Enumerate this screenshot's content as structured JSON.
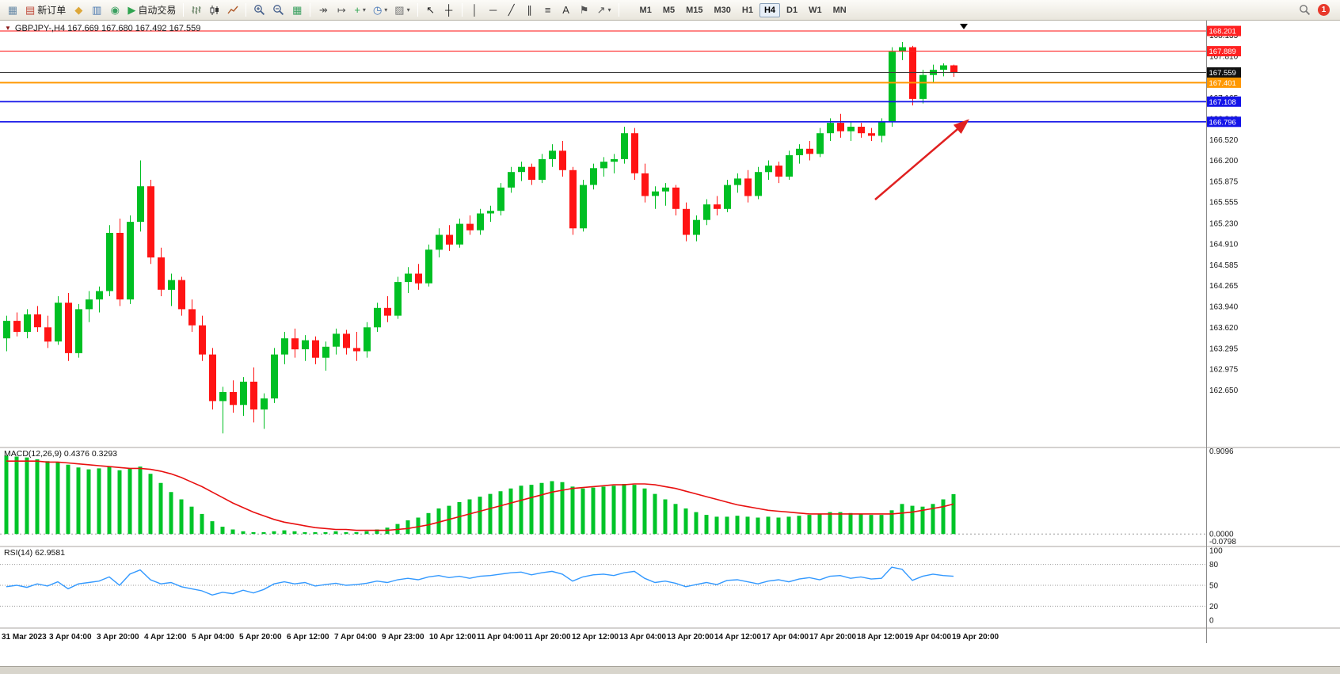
{
  "toolbar": {
    "badge": "1",
    "items": [
      {
        "name": "new-chart-button",
        "glyph": "▦",
        "color": "#6a8ba8"
      },
      {
        "name": "new-order-button",
        "glyph": "▤",
        "color": "#c04a3a",
        "label": "新订单"
      },
      {
        "name": "market-watch-button",
        "glyph": "◆",
        "color": "#dda739"
      },
      {
        "name": "data-window-button",
        "glyph": "▥",
        "color": "#4a78b0"
      },
      {
        "name": "navigator-button",
        "glyph": "◉",
        "color": "#3ba060"
      },
      {
        "name": "autotrading-button",
        "glyph": "▶",
        "color": "#2fa44f",
        "label": "自动交易"
      },
      {
        "sep": true
      },
      {
        "name": "bars-chart-button",
        "svg": "bars"
      },
      {
        "name": "candles-chart-button",
        "svg": "candles"
      },
      {
        "name": "line-chart-button",
        "svg": "line"
      },
      {
        "sep": true
      },
      {
        "name": "zoom-in-button",
        "svg": "zoomin"
      },
      {
        "name": "zoom-out-button",
        "svg": "zoomout"
      },
      {
        "name": "tile-windows-button",
        "glyph": "▦",
        "color": "#3ba060"
      },
      {
        "sep": true
      },
      {
        "name": "auto-scroll-button",
        "glyph": "↠",
        "color": "#555555"
      },
      {
        "name": "chart-shift-button",
        "glyph": "↦",
        "color": "#555555"
      },
      {
        "name": "indicators-button",
        "glyph": "+",
        "color": "#2fa44f",
        "caret": true
      },
      {
        "name": "periods-button",
        "glyph": "◷",
        "color": "#3a6eb5",
        "caret": true
      },
      {
        "name": "templates-button",
        "glyph": "▨",
        "color": "#777777",
        "caret": true
      },
      {
        "sep": true
      },
      {
        "name": "cursor-button",
        "glyph": "↖",
        "color": "#222222"
      },
      {
        "name": "crosshair-button",
        "glyph": "┼",
        "color": "#222222"
      },
      {
        "sep": true
      },
      {
        "name": "vertical-line-button",
        "glyph": "│",
        "color": "#333333"
      },
      {
        "name": "horizontal-line-button",
        "glyph": "─",
        "color": "#333333"
      },
      {
        "name": "trendline-button",
        "glyph": "╱",
        "color": "#333333"
      },
      {
        "name": "channel-button",
        "glyph": "∥",
        "color": "#333333"
      },
      {
        "name": "fibonacci-button",
        "glyph": "≡",
        "color": "#333333"
      },
      {
        "name": "text-button",
        "glyph": "A",
        "color": "#333333"
      },
      {
        "name": "text-label-button",
        "glyph": "⚑",
        "color": "#555555"
      },
      {
        "name": "arrows-button",
        "glyph": "↗",
        "color": "#555555",
        "caret": true
      },
      {
        "sep": true
      }
    ],
    "timeframes": [
      {
        "label": "M1"
      },
      {
        "label": "M5"
      },
      {
        "label": "M15"
      },
      {
        "label": "M30"
      },
      {
        "label": "H1"
      },
      {
        "label": "H4",
        "active": true
      },
      {
        "label": "D1"
      },
      {
        "label": "W1"
      },
      {
        "label": "MN"
      }
    ]
  },
  "icons": {
    "symbol_marker": "▼"
  },
  "chart": {
    "symbol": "GBPJPY-",
    "period": "H4",
    "title": "GBPJPY-,H4  167.669 167.680 167.492 167.559"
  },
  "colors": {
    "up": "#00bf23",
    "down": "#ff1414",
    "macd_bar": "#00c428",
    "macd_signal": "#e81010",
    "rsi_line": "#3399ff",
    "arrow": "#e02020",
    "level_red": "#ff2222",
    "level_orange": "#ff9800",
    "level_blue": "#1414e8",
    "current_price_line": "#3a3a3a"
  },
  "price_axis": {
    "ticks": [
      "168.135",
      "167.810",
      "167.485",
      "167.165",
      "166.840",
      "166.520",
      "166.200",
      "165.875",
      "165.555",
      "165.230",
      "164.910",
      "164.585",
      "164.265",
      "163.940",
      "163.620",
      "163.295",
      "162.975",
      "162.650"
    ]
  },
  "price_lines": [
    {
      "price": 168.201,
      "label": "168.201",
      "color": "#ff2222",
      "width": 1.2
    },
    {
      "price": 167.889,
      "label": "167.889",
      "color": "#ff2222",
      "width": 1.2
    },
    {
      "price": 167.559,
      "label": "167.559",
      "color": "#3a3a3a",
      "width": 1,
      "badge": "#111111",
      "current": true
    },
    {
      "price": 167.401,
      "label": "167.401",
      "color": "#ff9800",
      "width": 2
    },
    {
      "price": 167.108,
      "label": "167.108",
      "color": "#1414e8",
      "width": 1.7
    },
    {
      "price": 166.796,
      "label": "166.796",
      "color": "#1414e8",
      "width": 1.7
    }
  ],
  "time_axis": [
    "31 Mar 2023",
    "3 Apr 04:00",
    "3 Apr 20:00",
    "4 Apr 12:00",
    "5 Apr 04:00",
    "5 Apr 20:00",
    "6 Apr 12:00",
    "7 Apr 04:00",
    "9 Apr 23:00",
    "10 Apr 12:00",
    "11 Apr 04:00",
    "11 Apr 20:00",
    "12 Apr 12:00",
    "13 Apr 04:00",
    "13 Apr 20:00",
    "14 Apr 12:00",
    "17 Apr 04:00",
    "17 Apr 20:00",
    "18 Apr 12:00",
    "19 Apr 04:00",
    "19 Apr 20:00"
  ],
  "macd": {
    "label": "MACD(12,26,9) 0.4376 0.3293",
    "axis": [
      {
        "v": 0.9096,
        "t": "0.9096"
      },
      {
        "v": 0.0,
        "t": "0.0000"
      },
      {
        "v": -0.0798,
        "t": "-0.0798"
      }
    ],
    "histogram": [
      0.86,
      0.85,
      0.84,
      0.82,
      0.8,
      0.79,
      0.76,
      0.73,
      0.71,
      0.72,
      0.74,
      0.7,
      0.72,
      0.74,
      0.66,
      0.56,
      0.46,
      0.38,
      0.3,
      0.22,
      0.14,
      0.08,
      0.05,
      0.03,
      0.02,
      0.02,
      0.03,
      0.04,
      0.03,
      0.02,
      0.02,
      0.02,
      0.03,
      0.02,
      0.02,
      0.03,
      0.05,
      0.07,
      0.11,
      0.15,
      0.18,
      0.23,
      0.28,
      0.31,
      0.35,
      0.38,
      0.41,
      0.44,
      0.47,
      0.5,
      0.53,
      0.54,
      0.56,
      0.58,
      0.57,
      0.52,
      0.5,
      0.51,
      0.52,
      0.53,
      0.55,
      0.54,
      0.5,
      0.44,
      0.38,
      0.33,
      0.28,
      0.24,
      0.21,
      0.19,
      0.19,
      0.2,
      0.19,
      0.18,
      0.19,
      0.18,
      0.19,
      0.2,
      0.21,
      0.22,
      0.24,
      0.24,
      0.23,
      0.22,
      0.21,
      0.21,
      0.26,
      0.33,
      0.31,
      0.3,
      0.33,
      0.38,
      0.4376
    ],
    "signal": [
      0.8,
      0.8,
      0.8,
      0.8,
      0.79,
      0.79,
      0.78,
      0.77,
      0.76,
      0.75,
      0.74,
      0.73,
      0.72,
      0.72,
      0.71,
      0.69,
      0.66,
      0.62,
      0.57,
      0.52,
      0.46,
      0.4,
      0.34,
      0.29,
      0.24,
      0.2,
      0.16,
      0.13,
      0.11,
      0.09,
      0.07,
      0.06,
      0.05,
      0.05,
      0.04,
      0.04,
      0.04,
      0.04,
      0.05,
      0.06,
      0.08,
      0.1,
      0.13,
      0.16,
      0.19,
      0.22,
      0.25,
      0.28,
      0.31,
      0.34,
      0.37,
      0.4,
      0.43,
      0.46,
      0.48,
      0.5,
      0.51,
      0.52,
      0.53,
      0.54,
      0.54,
      0.55,
      0.55,
      0.54,
      0.52,
      0.5,
      0.47,
      0.44,
      0.41,
      0.38,
      0.35,
      0.32,
      0.3,
      0.28,
      0.26,
      0.25,
      0.24,
      0.23,
      0.22,
      0.22,
      0.22,
      0.22,
      0.22,
      0.22,
      0.22,
      0.22,
      0.22,
      0.23,
      0.24,
      0.26,
      0.28,
      0.3,
      0.3293
    ]
  },
  "rsi": {
    "label": "RSI(14) 62.9581",
    "axis": [
      "100",
      "80",
      "50",
      "20",
      "0"
    ],
    "levels": [
      80,
      50,
      20
    ],
    "values": [
      48,
      50,
      47,
      52,
      49,
      55,
      45,
      52,
      54,
      56,
      62,
      50,
      66,
      72,
      58,
      52,
      54,
      48,
      45,
      42,
      36,
      40,
      38,
      43,
      39,
      44,
      52,
      55,
      52,
      54,
      49,
      51,
      53,
      50,
      51,
      53,
      56,
      54,
      58,
      60,
      58,
      62,
      64,
      61,
      63,
      60,
      63,
      64,
      66,
      68,
      69,
      65,
      68,
      70,
      66,
      56,
      62,
      65,
      66,
      64,
      68,
      70,
      60,
      54,
      56,
      53,
      48,
      51,
      54,
      51,
      57,
      58,
      55,
      52,
      56,
      58,
      55,
      59,
      61,
      58,
      63,
      64,
      60,
      62,
      59,
      60,
      76,
      73,
      57,
      63,
      66,
      64,
      62.96
    ]
  },
  "chart_data": {
    "type": "candlestick",
    "symbol": "GBPJPY-",
    "timeframe": "H4",
    "current_bar": {
      "open": 167.669,
      "high": 167.68,
      "low": 167.492,
      "close": 167.559
    },
    "ylim": [
      161.787,
      168.312
    ],
    "candles": [
      [
        163.45,
        163.8,
        163.25,
        163.72
      ],
      [
        163.72,
        163.85,
        163.48,
        163.55
      ],
      [
        163.55,
        163.9,
        163.45,
        163.82
      ],
      [
        163.82,
        163.95,
        163.55,
        163.62
      ],
      [
        163.62,
        163.8,
        163.3,
        163.4
      ],
      [
        163.4,
        164.1,
        163.35,
        164.0
      ],
      [
        164.0,
        164.15,
        163.1,
        163.22
      ],
      [
        163.22,
        163.98,
        163.15,
        163.9
      ],
      [
        163.9,
        164.18,
        163.7,
        164.05
      ],
      [
        164.05,
        164.25,
        163.85,
        164.18
      ],
      [
        164.18,
        165.2,
        164.1,
        165.08
      ],
      [
        165.08,
        165.3,
        163.95,
        164.05
      ],
      [
        164.05,
        165.35,
        163.98,
        165.25
      ],
      [
        165.25,
        166.2,
        165.1,
        165.8
      ],
      [
        165.8,
        165.9,
        164.6,
        164.7
      ],
      [
        164.7,
        164.85,
        164.1,
        164.2
      ],
      [
        164.2,
        164.45,
        163.95,
        164.35
      ],
      [
        164.35,
        164.4,
        163.8,
        163.9
      ],
      [
        163.9,
        164.05,
        163.55,
        163.65
      ],
      [
        163.65,
        163.8,
        163.1,
        163.2
      ],
      [
        163.2,
        163.3,
        162.35,
        162.48
      ],
      [
        162.48,
        162.7,
        161.98,
        162.62
      ],
      [
        162.62,
        162.8,
        162.3,
        162.42
      ],
      [
        162.42,
        162.85,
        162.25,
        162.78
      ],
      [
        162.78,
        163.0,
        162.15,
        162.35
      ],
      [
        162.35,
        162.6,
        162.05,
        162.52
      ],
      [
        162.52,
        163.3,
        162.45,
        163.2
      ],
      [
        163.2,
        163.55,
        163.05,
        163.45
      ],
      [
        163.45,
        163.6,
        163.15,
        163.28
      ],
      [
        163.28,
        163.5,
        163.1,
        163.42
      ],
      [
        163.42,
        163.48,
        163.05,
        163.15
      ],
      [
        163.15,
        163.4,
        162.95,
        163.32
      ],
      [
        163.32,
        163.6,
        163.2,
        163.52
      ],
      [
        163.52,
        163.58,
        163.2,
        163.3
      ],
      [
        163.3,
        163.55,
        163.1,
        163.25
      ],
      [
        163.25,
        163.7,
        163.15,
        163.62
      ],
      [
        163.62,
        164.0,
        163.55,
        163.92
      ],
      [
        163.92,
        164.1,
        163.7,
        163.8
      ],
      [
        163.8,
        164.4,
        163.75,
        164.32
      ],
      [
        164.32,
        164.55,
        164.15,
        164.45
      ],
      [
        164.45,
        164.6,
        164.2,
        164.3
      ],
      [
        164.3,
        164.9,
        164.25,
        164.82
      ],
      [
        164.82,
        165.15,
        164.7,
        165.05
      ],
      [
        165.05,
        165.2,
        164.8,
        164.9
      ],
      [
        164.9,
        165.3,
        164.85,
        165.22
      ],
      [
        165.22,
        165.35,
        165.05,
        165.12
      ],
      [
        165.12,
        165.45,
        165.05,
        165.38
      ],
      [
        165.38,
        165.5,
        165.25,
        165.42
      ],
      [
        165.42,
        165.85,
        165.35,
        165.78
      ],
      [
        165.78,
        166.1,
        165.7,
        166.02
      ],
      [
        166.02,
        166.18,
        165.88,
        166.1
      ],
      [
        166.1,
        166.15,
        165.82,
        165.9
      ],
      [
        165.9,
        166.3,
        165.85,
        166.22
      ],
      [
        166.22,
        166.45,
        166.1,
        166.35
      ],
      [
        166.35,
        166.5,
        165.95,
        166.05
      ],
      [
        166.05,
        166.1,
        165.05,
        165.15
      ],
      [
        165.15,
        165.9,
        165.1,
        165.82
      ],
      [
        165.82,
        166.15,
        165.75,
        166.08
      ],
      [
        166.08,
        166.25,
        165.95,
        166.18
      ],
      [
        166.18,
        166.3,
        166.0,
        166.22
      ],
      [
        166.22,
        166.72,
        166.15,
        166.62
      ],
      [
        166.62,
        166.7,
        165.9,
        166.0
      ],
      [
        166.0,
        166.15,
        165.55,
        165.65
      ],
      [
        165.65,
        165.8,
        165.45,
        165.72
      ],
      [
        165.72,
        165.85,
        165.5,
        165.78
      ],
      [
        165.78,
        165.82,
        165.35,
        165.45
      ],
      [
        165.45,
        165.55,
        164.95,
        165.05
      ],
      [
        165.05,
        165.35,
        164.95,
        165.28
      ],
      [
        165.28,
        165.6,
        165.2,
        165.52
      ],
      [
        165.52,
        165.65,
        165.35,
        165.45
      ],
      [
        165.45,
        165.9,
        165.4,
        165.82
      ],
      [
        165.82,
        166.0,
        165.7,
        165.92
      ],
      [
        165.92,
        166.05,
        165.55,
        165.65
      ],
      [
        165.65,
        166.1,
        165.6,
        166.02
      ],
      [
        166.02,
        166.2,
        165.9,
        166.12
      ],
      [
        166.12,
        166.18,
        165.85,
        165.95
      ],
      [
        165.95,
        166.35,
        165.9,
        166.28
      ],
      [
        166.28,
        166.45,
        166.15,
        166.38
      ],
      [
        166.38,
        166.5,
        166.2,
        166.3
      ],
      [
        166.3,
        166.7,
        166.25,
        166.62
      ],
      [
        166.62,
        166.85,
        166.5,
        166.78
      ],
      [
        166.78,
        166.92,
        166.55,
        166.65
      ],
      [
        166.65,
        166.8,
        166.5,
        166.72
      ],
      [
        166.72,
        166.78,
        166.55,
        166.62
      ],
      [
        166.62,
        166.7,
        166.5,
        166.58
      ],
      [
        166.58,
        166.85,
        166.48,
        166.8
      ],
      [
        166.8,
        167.95,
        166.72,
        167.88
      ],
      [
        167.88,
        168.03,
        167.75,
        167.95
      ],
      [
        167.95,
        167.97,
        167.05,
        167.15
      ],
      [
        167.15,
        167.6,
        167.08,
        167.52
      ],
      [
        167.52,
        167.68,
        167.4,
        167.6
      ],
      [
        167.6,
        167.7,
        167.5,
        167.669
      ],
      [
        167.669,
        167.68,
        167.492,
        167.559
      ]
    ]
  }
}
